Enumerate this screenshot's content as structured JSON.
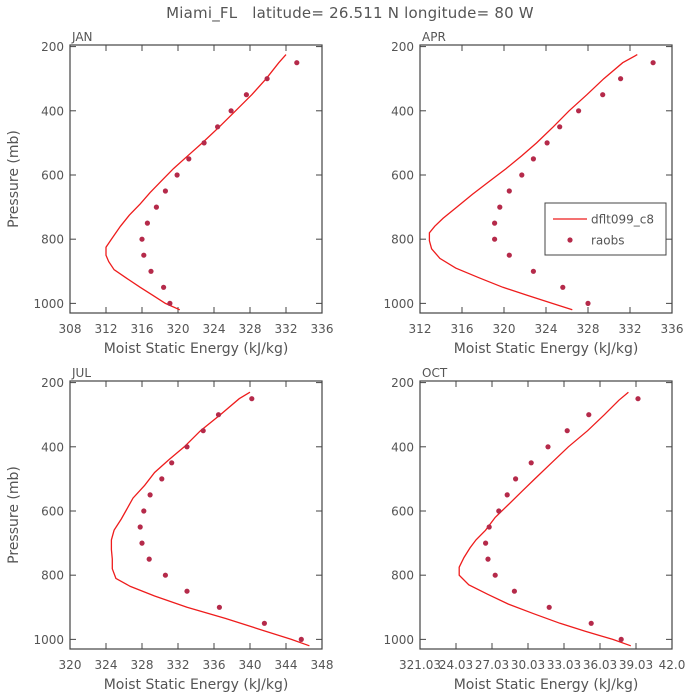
{
  "title": "Miami_FL   latitude= 26.511 N longitude= 80 W",
  "colors": {
    "model": "#ee1c1c",
    "obs": "#b52a4a",
    "axis": "#444444",
    "text": "#555555"
  },
  "chart_data": [
    {
      "type": "line",
      "panel": "JAN",
      "xlabel": "Moist Static Energy (kJ/kg)",
      "ylabel": "Pressure (mb)",
      "xlim": [
        308,
        336
      ],
      "xticks": [
        "308",
        "312",
        "316",
        "320",
        "324",
        "328",
        "332",
        "336"
      ],
      "ylim": [
        1030,
        195
      ],
      "yticks": [
        "200",
        "400",
        "600",
        "800",
        "1000"
      ],
      "legend": null,
      "series": [
        {
          "points": [
            [
              320.2,
              1020
            ],
            [
              318.6,
              1000
            ],
            [
              317.2,
              975
            ],
            [
              315.8,
              950
            ],
            [
              314.2,
              920
            ],
            [
              312.9,
              895
            ],
            [
              312.3,
              870
            ],
            [
              312.0,
              850
            ],
            [
              312.0,
              825
            ],
            [
              312.6,
              800
            ],
            [
              313.6,
              760
            ],
            [
              314.6,
              725
            ],
            [
              315.8,
              690
            ],
            [
              316.9,
              655
            ],
            [
              318.1,
              620
            ],
            [
              319.5,
              580
            ],
            [
              321.1,
              540
            ],
            [
              322.7,
              500
            ],
            [
              324.6,
              450
            ],
            [
              326.4,
              400
            ],
            [
              328.2,
              350
            ],
            [
              329.8,
              300
            ],
            [
              331.2,
              250
            ],
            [
              332.0,
              225
            ]
          ]
        },
        {
          "points": [
            [
              319.1,
              1000
            ],
            [
              318.4,
              950
            ],
            [
              317.0,
              900
            ],
            [
              316.2,
              850
            ],
            [
              316.0,
              800
            ],
            [
              316.6,
              750
            ],
            [
              317.6,
              700
            ],
            [
              318.6,
              650
            ],
            [
              319.9,
              600
            ],
            [
              321.2,
              550
            ],
            [
              322.9,
              500
            ],
            [
              324.4,
              450
            ],
            [
              325.9,
              400
            ],
            [
              327.6,
              350
            ],
            [
              329.9,
              300
            ],
            [
              333.2,
              250
            ]
          ]
        }
      ]
    },
    {
      "type": "line",
      "panel": "APR",
      "xlabel": "Moist Static Energy (kJ/kg)",
      "ylabel": "",
      "xlim": [
        312,
        336
      ],
      "xticks": [
        "312",
        "316",
        "320",
        "324",
        "328",
        "332",
        "336"
      ],
      "ylim": [
        1030,
        195
      ],
      "yticks": [
        "200",
        "400",
        "600",
        "800",
        "1000"
      ],
      "legend": {
        "placement": "center-right",
        "entries": [
          "dflt099_c8",
          "raobs"
        ]
      },
      "series": [
        {
          "name": "dflt099_c8",
          "points": [
            [
              326.5,
              1020
            ],
            [
              324.6,
              1000
            ],
            [
              322.2,
              975
            ],
            [
              319.9,
              950
            ],
            [
              317.6,
              920
            ],
            [
              315.4,
              890
            ],
            [
              313.9,
              860
            ],
            [
              313.1,
              830
            ],
            [
              312.9,
              805
            ],
            [
              312.9,
              780
            ],
            [
              313.4,
              760
            ],
            [
              314.2,
              735
            ],
            [
              315.5,
              700
            ],
            [
              317.0,
              660
            ],
            [
              318.6,
              620
            ],
            [
              320.2,
              580
            ],
            [
              321.7,
              540
            ],
            [
              323.1,
              500
            ],
            [
              324.7,
              450
            ],
            [
              326.2,
              400
            ],
            [
              327.9,
              350
            ],
            [
              329.5,
              300
            ],
            [
              331.3,
              250
            ],
            [
              332.7,
              225
            ]
          ]
        },
        {
          "name": "raobs",
          "points": [
            [
              328.0,
              1000
            ],
            [
              325.6,
              950
            ],
            [
              322.8,
              900
            ],
            [
              320.5,
              850
            ],
            [
              319.1,
              800
            ],
            [
              319.1,
              750
            ],
            [
              319.6,
              700
            ],
            [
              320.5,
              650
            ],
            [
              321.7,
              600
            ],
            [
              322.8,
              550
            ],
            [
              324.1,
              500
            ],
            [
              325.3,
              450
            ],
            [
              327.1,
              400
            ],
            [
              329.4,
              350
            ],
            [
              331.1,
              300
            ],
            [
              334.2,
              250
            ]
          ]
        }
      ]
    },
    {
      "type": "line",
      "panel": "JUL",
      "xlabel": "Moist Static Energy (kJ/kg)",
      "ylabel": "Pressure (mb)",
      "xlim": [
        320,
        348
      ],
      "xticks": [
        "320",
        "324",
        "328",
        "332",
        "336",
        "340",
        "344",
        "348"
      ],
      "ylim": [
        1030,
        195
      ],
      "yticks": [
        "200",
        "400",
        "600",
        "800",
        "1000"
      ],
      "legend": null,
      "series": [
        {
          "points": [
            [
              346.6,
              1020
            ],
            [
              344.6,
              1000
            ],
            [
              341.2,
              970
            ],
            [
              337.3,
              935
            ],
            [
              333.0,
              900
            ],
            [
              329.4,
              865
            ],
            [
              326.7,
              835
            ],
            [
              325.1,
              810
            ],
            [
              324.7,
              780
            ],
            [
              324.7,
              750
            ],
            [
              324.6,
              720
            ],
            [
              324.6,
              690
            ],
            [
              324.9,
              660
            ],
            [
              325.7,
              625
            ],
            [
              326.2,
              600
            ],
            [
              327.0,
              560
            ],
            [
              328.3,
              520
            ],
            [
              329.4,
              480
            ],
            [
              331.0,
              440
            ],
            [
              332.7,
              400
            ],
            [
              334.5,
              350
            ],
            [
              336.7,
              300
            ],
            [
              338.8,
              250
            ],
            [
              340.0,
              230
            ]
          ]
        },
        {
          "points": [
            [
              345.7,
              1000
            ],
            [
              341.6,
              950
            ],
            [
              336.6,
              900
            ],
            [
              333.0,
              850
            ],
            [
              330.6,
              800
            ],
            [
              328.8,
              750
            ],
            [
              328.0,
              700
            ],
            [
              327.8,
              650
            ],
            [
              328.2,
              600
            ],
            [
              328.9,
              550
            ],
            [
              330.2,
              500
            ],
            [
              331.3,
              450
            ],
            [
              333.0,
              400
            ],
            [
              334.8,
              350
            ],
            [
              336.5,
              300
            ],
            [
              340.2,
              250
            ]
          ]
        }
      ]
    },
    {
      "type": "line",
      "panel": "OCT",
      "xlabel": "Moist Static Energy (kJ/kg)",
      "ylabel": "",
      "xlim": [
        321.03,
        342.03
      ],
      "xticks": [
        "321.03",
        "24.03",
        "27.03",
        "30.03",
        "33.03",
        "36.03",
        "39.03",
        "42.0"
      ],
      "ylim": [
        1030,
        195
      ],
      "yticks": [
        "200",
        "400",
        "600",
        "800",
        "1000"
      ],
      "legend": null,
      "series": [
        {
          "points": [
            [
              338.6,
              1020
            ],
            [
              337.1,
              1000
            ],
            [
              334.8,
              975
            ],
            [
              332.7,
              950
            ],
            [
              330.5,
              920
            ],
            [
              328.4,
              890
            ],
            [
              326.7,
              860
            ],
            [
              325.1,
              830
            ],
            [
              324.3,
              800
            ],
            [
              324.3,
              775
            ],
            [
              324.7,
              745
            ],
            [
              325.2,
              715
            ],
            [
              325.7,
              690
            ],
            [
              326.5,
              660
            ],
            [
              327.3,
              620
            ],
            [
              328.4,
              580
            ],
            [
              329.5,
              540
            ],
            [
              330.6,
              500
            ],
            [
              332.0,
              450
            ],
            [
              333.4,
              400
            ],
            [
              335.0,
              350
            ],
            [
              336.4,
              300
            ],
            [
              337.6,
              255
            ],
            [
              338.4,
              230
            ]
          ]
        },
        {
          "points": [
            [
              337.8,
              1000
            ],
            [
              335.3,
              950
            ],
            [
              331.8,
              900
            ],
            [
              328.9,
              850
            ],
            [
              327.3,
              800
            ],
            [
              326.7,
              750
            ],
            [
              326.5,
              700
            ],
            [
              326.8,
              650
            ],
            [
              327.6,
              600
            ],
            [
              328.3,
              550
            ],
            [
              329.0,
              500
            ],
            [
              330.3,
              450
            ],
            [
              331.7,
              400
            ],
            [
              333.3,
              350
            ],
            [
              335.1,
              300
            ],
            [
              339.2,
              250
            ]
          ]
        }
      ]
    }
  ]
}
